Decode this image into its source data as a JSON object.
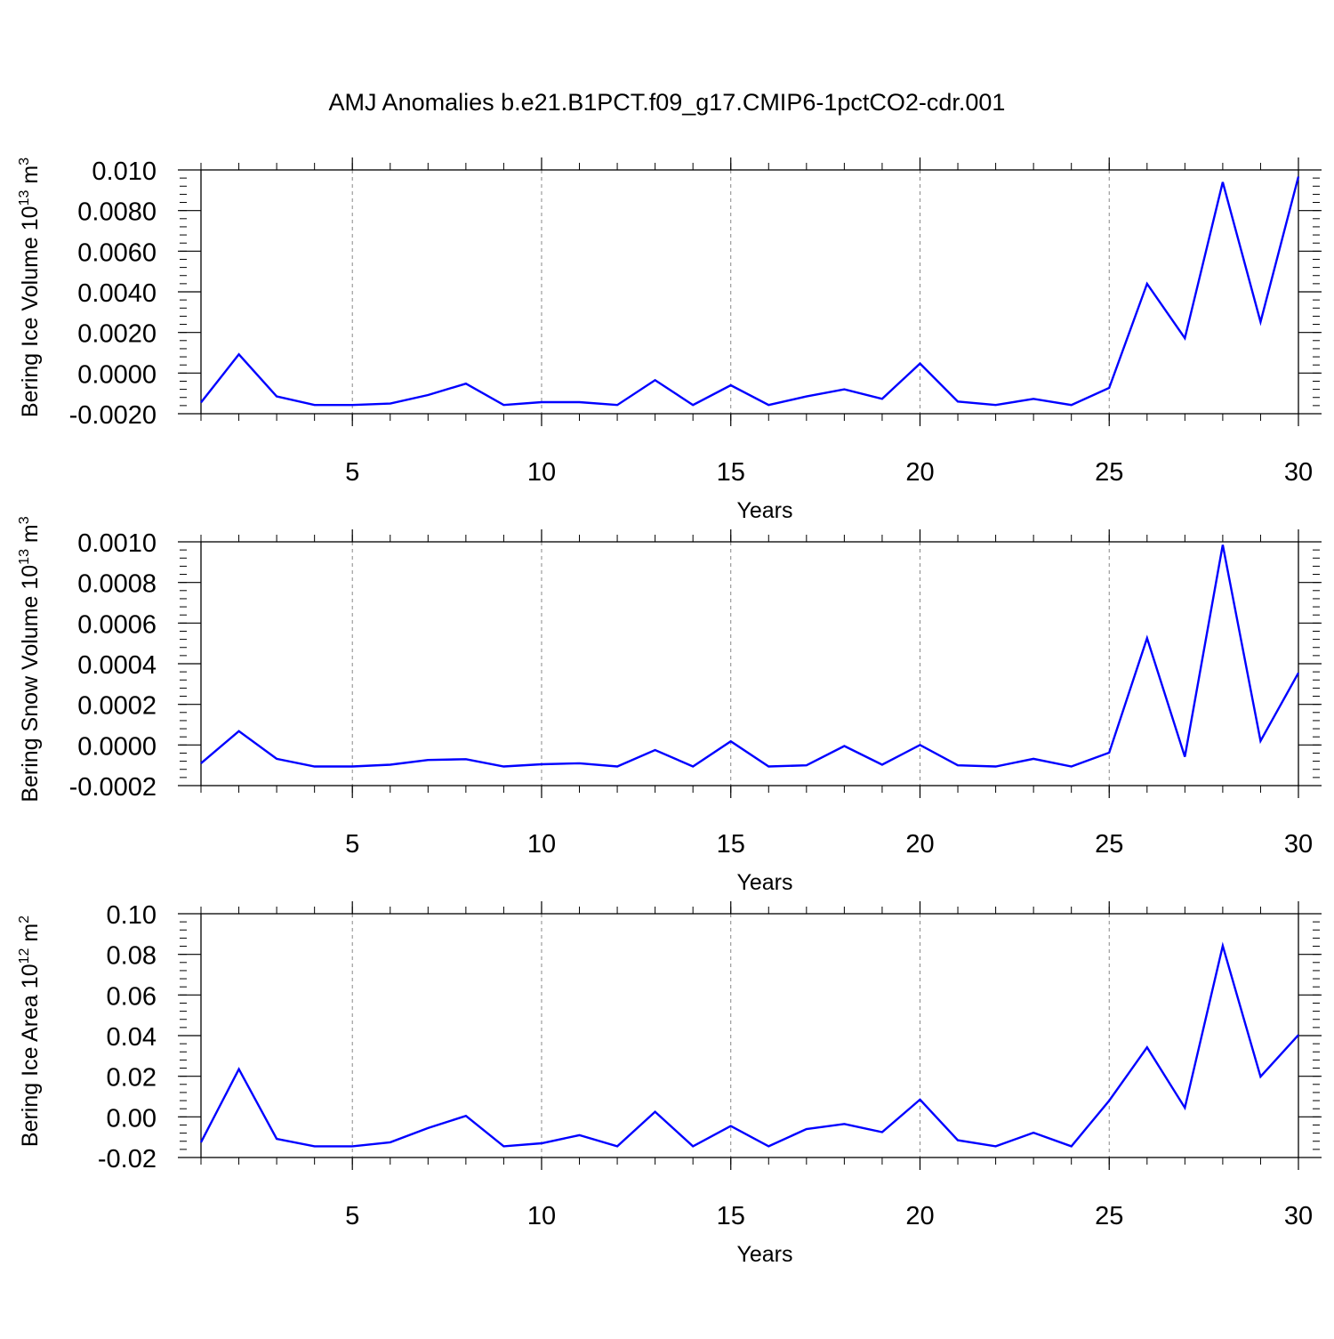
{
  "title": "AMJ Anomalies b.e21.B1PCT.f09_g17.CMIP6-1pctCO2-cdr.001",
  "colors": {
    "line": "#0000ff",
    "axis": "#000000",
    "grid": "#888888"
  },
  "chart_data": [
    {
      "type": "line",
      "xlabel": "Years",
      "ylabel": {
        "base": "Bering Ice Volume 10",
        "exp": "13",
        "unit": " m",
        "unit_exp": "3"
      },
      "xlim": [
        1,
        30
      ],
      "ylim": [
        -0.002,
        0.01
      ],
      "xticks": [
        5,
        10,
        15,
        20,
        25,
        30
      ],
      "yticks": [
        -0.002,
        0.0,
        0.002,
        0.004,
        0.006,
        0.008,
        0.01
      ],
      "ytick_labels": [
        "-0.0020",
        "0.0000",
        "0.0020",
        "0.0040",
        "0.0060",
        "0.0080",
        "0.010"
      ],
      "grid": "dashed vertical at major x ticks",
      "x": [
        1,
        2,
        3,
        4,
        5,
        6,
        7,
        8,
        9,
        10,
        11,
        12,
        13,
        14,
        15,
        16,
        17,
        18,
        19,
        20,
        21,
        22,
        23,
        24,
        25,
        26,
        27,
        28,
        29,
        30
      ],
      "values": [
        -0.00145,
        0.00092,
        -0.00115,
        -0.00157,
        -0.00157,
        -0.0015,
        -0.00108,
        -0.00052,
        -0.00157,
        -0.00143,
        -0.00143,
        -0.00157,
        -0.00035,
        -0.00157,
        -0.0006,
        -0.00157,
        -0.00115,
        -0.0008,
        -0.00127,
        0.00047,
        -0.0014,
        -0.00157,
        -0.00127,
        -0.00157,
        -0.00073,
        0.0044,
        0.00172,
        0.0094,
        0.00252,
        0.00967
      ]
    },
    {
      "type": "line",
      "xlabel": "Years",
      "ylabel": {
        "base": "Bering Snow Volume 10",
        "exp": "13",
        "unit": " m",
        "unit_exp": "3"
      },
      "xlim": [
        1,
        30
      ],
      "ylim": [
        -0.0002,
        0.001
      ],
      "xticks": [
        5,
        10,
        15,
        20,
        25,
        30
      ],
      "yticks": [
        -0.0002,
        0.0,
        0.0002,
        0.0004,
        0.0006,
        0.0008,
        0.001
      ],
      "ytick_labels": [
        "-0.0002",
        "0.0000",
        "0.0002",
        "0.0004",
        "0.0006",
        "0.0008",
        "0.0010"
      ],
      "grid": "dashed vertical at major x ticks",
      "x": [
        1,
        2,
        3,
        4,
        5,
        6,
        7,
        8,
        9,
        10,
        11,
        12,
        13,
        14,
        15,
        16,
        17,
        18,
        19,
        20,
        21,
        22,
        23,
        24,
        25,
        26,
        27,
        28,
        29,
        30
      ],
      "values": [
        -9e-05,
        6.8e-05,
        -6.8e-05,
        -0.000106,
        -0.000106,
        -9.7e-05,
        -7.4e-05,
        -7e-05,
        -0.000106,
        -9.5e-05,
        -9e-05,
        -0.000106,
        -2.5e-05,
        -0.000106,
        1.8e-05,
        -0.000106,
        -0.0001,
        -5e-06,
        -9.7e-05,
        0.0,
        -0.0001,
        -0.000106,
        -6.8e-05,
        -0.000106,
        -3.8e-05,
        0.000526,
        -5.8e-05,
        0.000985,
        2e-05,
        0.000355
      ]
    },
    {
      "type": "line",
      "xlabel": "Years",
      "ylabel": {
        "base": "Bering Ice Area 10",
        "exp": "12",
        "unit": " m",
        "unit_exp": "2"
      },
      "xlim": [
        1,
        30
      ],
      "ylim": [
        -0.02,
        0.1
      ],
      "xticks": [
        5,
        10,
        15,
        20,
        25,
        30
      ],
      "yticks": [
        -0.02,
        0.0,
        0.02,
        0.04,
        0.06,
        0.08,
        0.1
      ],
      "ytick_labels": [
        "-0.02",
        "0.00",
        "0.02",
        "0.04",
        "0.06",
        "0.08",
        "0.10"
      ],
      "grid": "dashed vertical at major x ticks",
      "x": [
        1,
        2,
        3,
        4,
        5,
        6,
        7,
        8,
        9,
        10,
        11,
        12,
        13,
        14,
        15,
        16,
        17,
        18,
        19,
        20,
        21,
        22,
        23,
        24,
        25,
        26,
        27,
        28,
        29,
        30
      ],
      "values": [
        -0.0125,
        0.0235,
        -0.0108,
        -0.0145,
        -0.0145,
        -0.0125,
        -0.0055,
        0.0005,
        -0.0145,
        -0.013,
        -0.009,
        -0.0145,
        0.0025,
        -0.0145,
        -0.0045,
        -0.0145,
        -0.006,
        -0.0035,
        -0.0075,
        0.0085,
        -0.0115,
        -0.0145,
        -0.0078,
        -0.0145,
        0.008,
        0.0342,
        0.0045,
        0.0842,
        0.0198,
        0.0403
      ]
    }
  ]
}
